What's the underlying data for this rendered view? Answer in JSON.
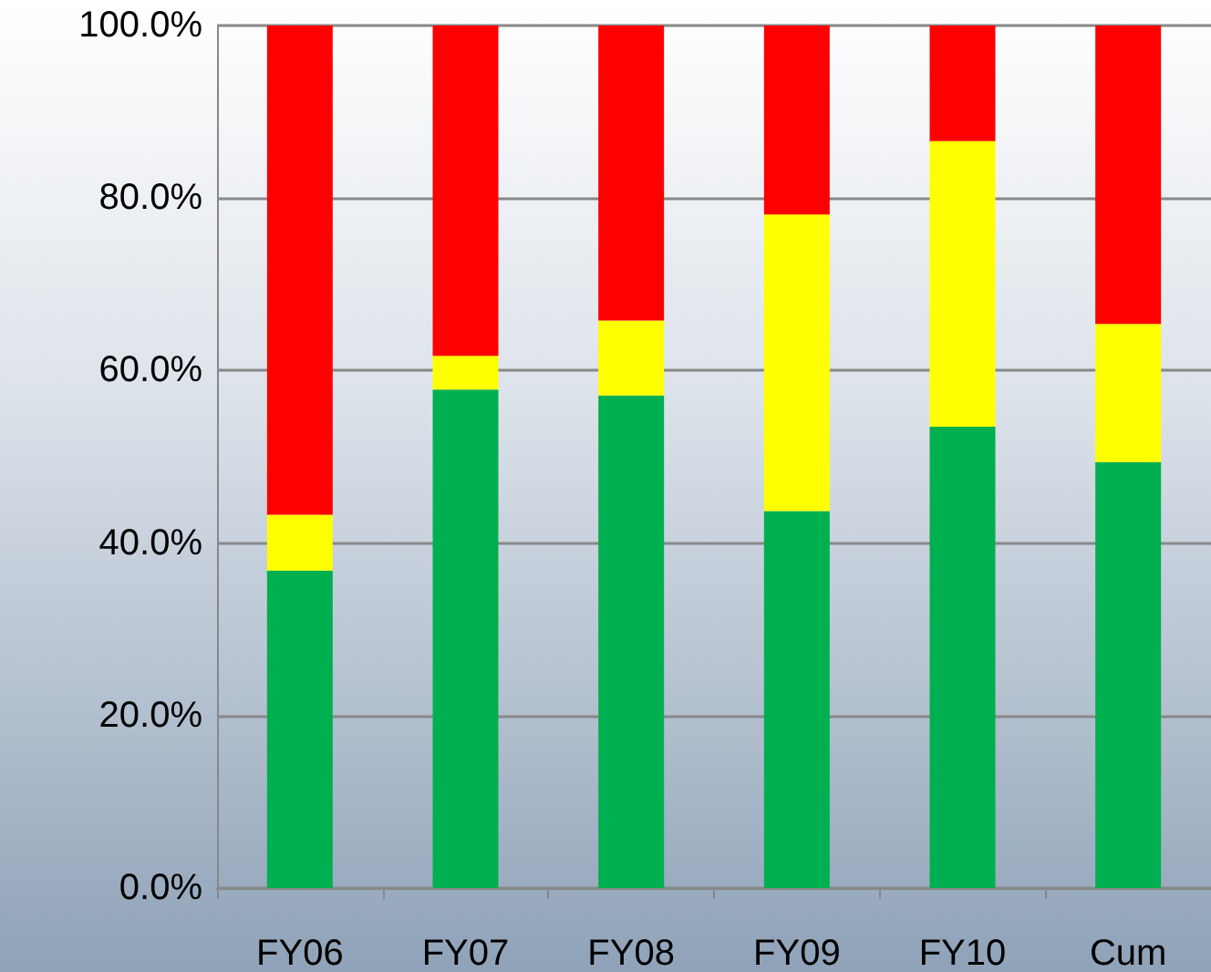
{
  "chart_data": {
    "type": "bar",
    "stacked": true,
    "categories": [
      "FY06",
      "FY07",
      "FY08",
      "FY09",
      "FY10",
      "Cum"
    ],
    "series": [
      {
        "color": "#00b050",
        "values": [
          36.8,
          57.8,
          57.1,
          43.7,
          53.5,
          49.4
        ]
      },
      {
        "color": "#ffff00",
        "values": [
          6.5,
          3.9,
          8.7,
          34.4,
          33.1,
          16.0
        ]
      },
      {
        "color": "#ff0000",
        "values": [
          56.7,
          38.3,
          34.2,
          21.9,
          13.4,
          34.6
        ]
      }
    ],
    "ylim": [
      0,
      100
    ],
    "yticks": [
      {
        "value": 0,
        "label": "0.0%"
      },
      {
        "value": 20,
        "label": "20.0%"
      },
      {
        "value": 40,
        "label": "40.0%"
      },
      {
        "value": 60,
        "label": "60.0%"
      },
      {
        "value": 80,
        "label": "80.0%"
      },
      {
        "value": 100,
        "label": "100.0%"
      }
    ],
    "grid": "y"
  }
}
